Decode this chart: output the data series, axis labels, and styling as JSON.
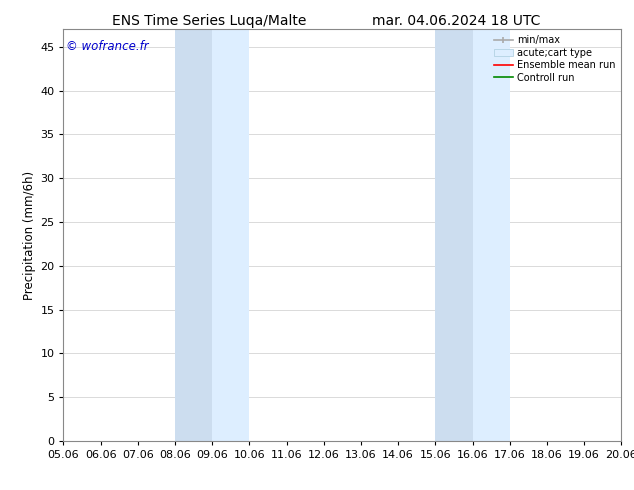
{
  "title_left": "ENS Time Series Luqa/Malte",
  "title_right": "mar. 04.06.2024 18 UTC",
  "ylabel": "Precipitation (mm/6h)",
  "watermark": "© wofrance.fr",
  "watermark_color": "#0000cc",
  "xlim_min": 5.06,
  "xlim_max": 20.06,
  "ylim_min": 0,
  "ylim_max": 47,
  "yticks": [
    0,
    5,
    10,
    15,
    20,
    25,
    30,
    35,
    40,
    45
  ],
  "xtick_labels": [
    "05.06",
    "06.06",
    "07.06",
    "08.06",
    "09.06",
    "10.06",
    "11.06",
    "12.06",
    "13.06",
    "14.06",
    "15.06",
    "16.06",
    "17.06",
    "18.06",
    "19.06",
    "20.06"
  ],
  "xtick_values": [
    5.06,
    6.06,
    7.06,
    8.06,
    9.06,
    10.06,
    11.06,
    12.06,
    13.06,
    14.06,
    15.06,
    16.06,
    17.06,
    18.06,
    19.06,
    20.06
  ],
  "shaded_regions": [
    [
      8.06,
      9.06
    ],
    [
      9.06,
      10.06
    ],
    [
      15.06,
      16.06
    ],
    [
      16.06,
      17.06
    ]
  ],
  "shaded_colors": [
    "#ccddef",
    "#ddeeff",
    "#ccddef",
    "#ddeeff"
  ],
  "shaded_edge_color": "none",
  "background_color": "#ffffff",
  "plot_bg_color": "#ffffff",
  "legend_labels": [
    "min/max",
    "acute;cart type",
    "Ensemble mean run",
    "Controll run"
  ],
  "title_fontsize": 10,
  "tick_fontsize": 8,
  "ylabel_fontsize": 8.5
}
